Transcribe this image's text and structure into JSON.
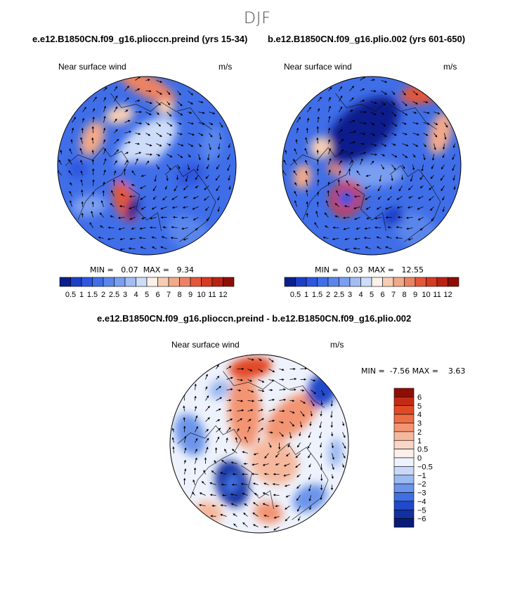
{
  "figure": {
    "season_title": "DJF"
  },
  "panels": {
    "p1": {
      "title": "e.e12.B1850CN.f09_g16.plioccn.preind (yrs 15-34)",
      "var_label": "Near surface wind",
      "units": "m/s",
      "min_label": "MIN =",
      "min_value": "0.07",
      "max_label": "MAX =",
      "max_value": "9.34"
    },
    "p2": {
      "title": "b.e12.B1850CN.f09_g16.plio.002 (yrs 601-650)",
      "var_label": "Near surface wind",
      "units": "m/s",
      "min_label": "MIN =",
      "min_value": "0.03",
      "max_label": "MAX =",
      "max_value": "12.55"
    },
    "p3": {
      "title": "e.e12.B1850CN.f09_g16.plioccn.preind - b.e12.B1850CN.f09_g16.plio.002",
      "var_label": "Near surface wind",
      "units": "m/s",
      "min_label": "MIN =",
      "min_value": "-7.56",
      "max_label": "MAX =",
      "max_value": "3.63"
    }
  },
  "chart_data": [
    {
      "type": "heatmap",
      "title": "e.e12.B1850CN.f09_g16.plioccn.preind (yrs 15-34)",
      "variable": "Near surface wind",
      "units": "m/s",
      "projection": "north-polar-stereographic",
      "min": 0.07,
      "max": 9.34,
      "levels": [
        "0.5",
        "1",
        "1.5",
        "2",
        "2.5",
        "3",
        "4",
        "5",
        "6",
        "7",
        "8",
        "9",
        "10",
        "11",
        "12"
      ],
      "colors": [
        "#0a1f8c",
        "#1d3fc7",
        "#2d57e0",
        "#3f6ee8",
        "#5a86ec",
        "#7a9ef0",
        "#a2bdf4",
        "#cddcf8",
        "#fbf1e8",
        "#f6cdb4",
        "#f2a88a",
        "#ec8264",
        "#e3573b",
        "#d43b21",
        "#b92212",
        "#8e0e06"
      ]
    },
    {
      "type": "heatmap",
      "title": "b.e12.B1850CN.f09_g16.plio.002 (yrs 601-650)",
      "variable": "Near surface wind",
      "units": "m/s",
      "projection": "north-polar-stereographic",
      "min": 0.03,
      "max": 12.55,
      "levels": [
        "0.5",
        "1",
        "1.5",
        "2",
        "2.5",
        "3",
        "4",
        "5",
        "6",
        "7",
        "8",
        "9",
        "10",
        "11",
        "12"
      ],
      "colors": [
        "#0a1f8c",
        "#1d3fc7",
        "#2d57e0",
        "#3f6ee8",
        "#5a86ec",
        "#7a9ef0",
        "#a2bdf4",
        "#cddcf8",
        "#fbf1e8",
        "#f6cdb4",
        "#f2a88a",
        "#ec8264",
        "#e3573b",
        "#d43b21",
        "#b92212",
        "#8e0e06"
      ]
    },
    {
      "type": "heatmap",
      "title": "e.e12.B1850CN.f09_g16.plioccn.preind - b.e12.B1850CN.f09_g16.plio.002",
      "variable": "Near surface wind",
      "units": "m/s",
      "projection": "north-polar-stereographic",
      "min": -7.56,
      "max": 3.63,
      "levels": [
        "6",
        "5",
        "4",
        "3",
        "2",
        "1",
        "0.5",
        "0",
        "−0.5",
        "−1",
        "−2",
        "−3",
        "−4",
        "−5",
        "−6"
      ],
      "colors": [
        "#8e0e06",
        "#c42b14",
        "#e24a25",
        "#ee6d45",
        "#f39472",
        "#f6b89c",
        "#f9d7c6",
        "#fdf1ea",
        "#eef2fc",
        "#c9d8f7",
        "#9db9f1",
        "#6c94ea",
        "#3f6fe2",
        "#2249c9",
        "#13309f",
        "#081b78"
      ]
    }
  ]
}
